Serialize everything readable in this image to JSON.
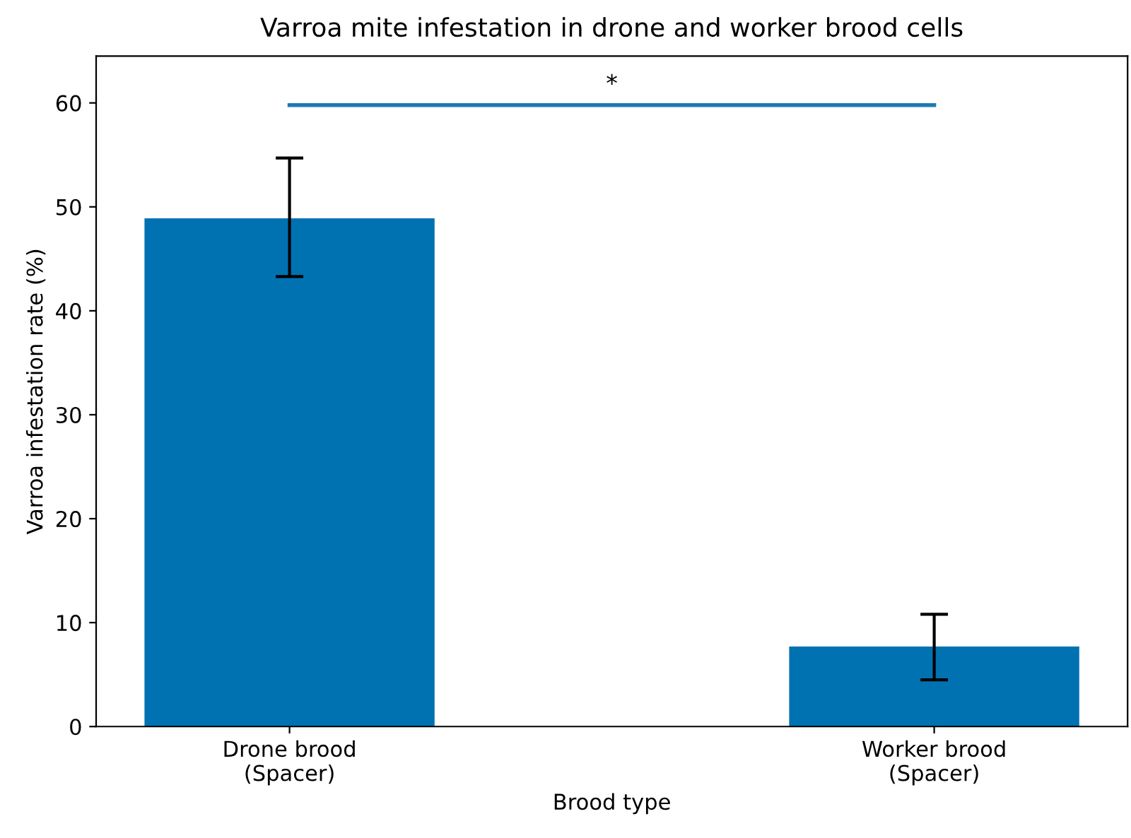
{
  "chart_data": {
    "type": "bar",
    "title": "Varroa mite infestation in drone and worker brood cells",
    "xlabel": "Brood type",
    "ylabel": "Varroa infestation rate (%)",
    "categories": [
      "Drone brood\n(Spacer)",
      "Worker brood\n(Spacer)"
    ],
    "values": [
      48.9,
      7.7
    ],
    "errors": [
      [
        43.3,
        54.7
      ],
      [
        4.5,
        10.8
      ]
    ],
    "color": "#0072b2",
    "ylim": [
      0,
      64.5
    ],
    "yticks": [
      0,
      10,
      20,
      30,
      40,
      50,
      60
    ],
    "grid": false,
    "legend": false,
    "annotations": [
      "*"
    ]
  }
}
